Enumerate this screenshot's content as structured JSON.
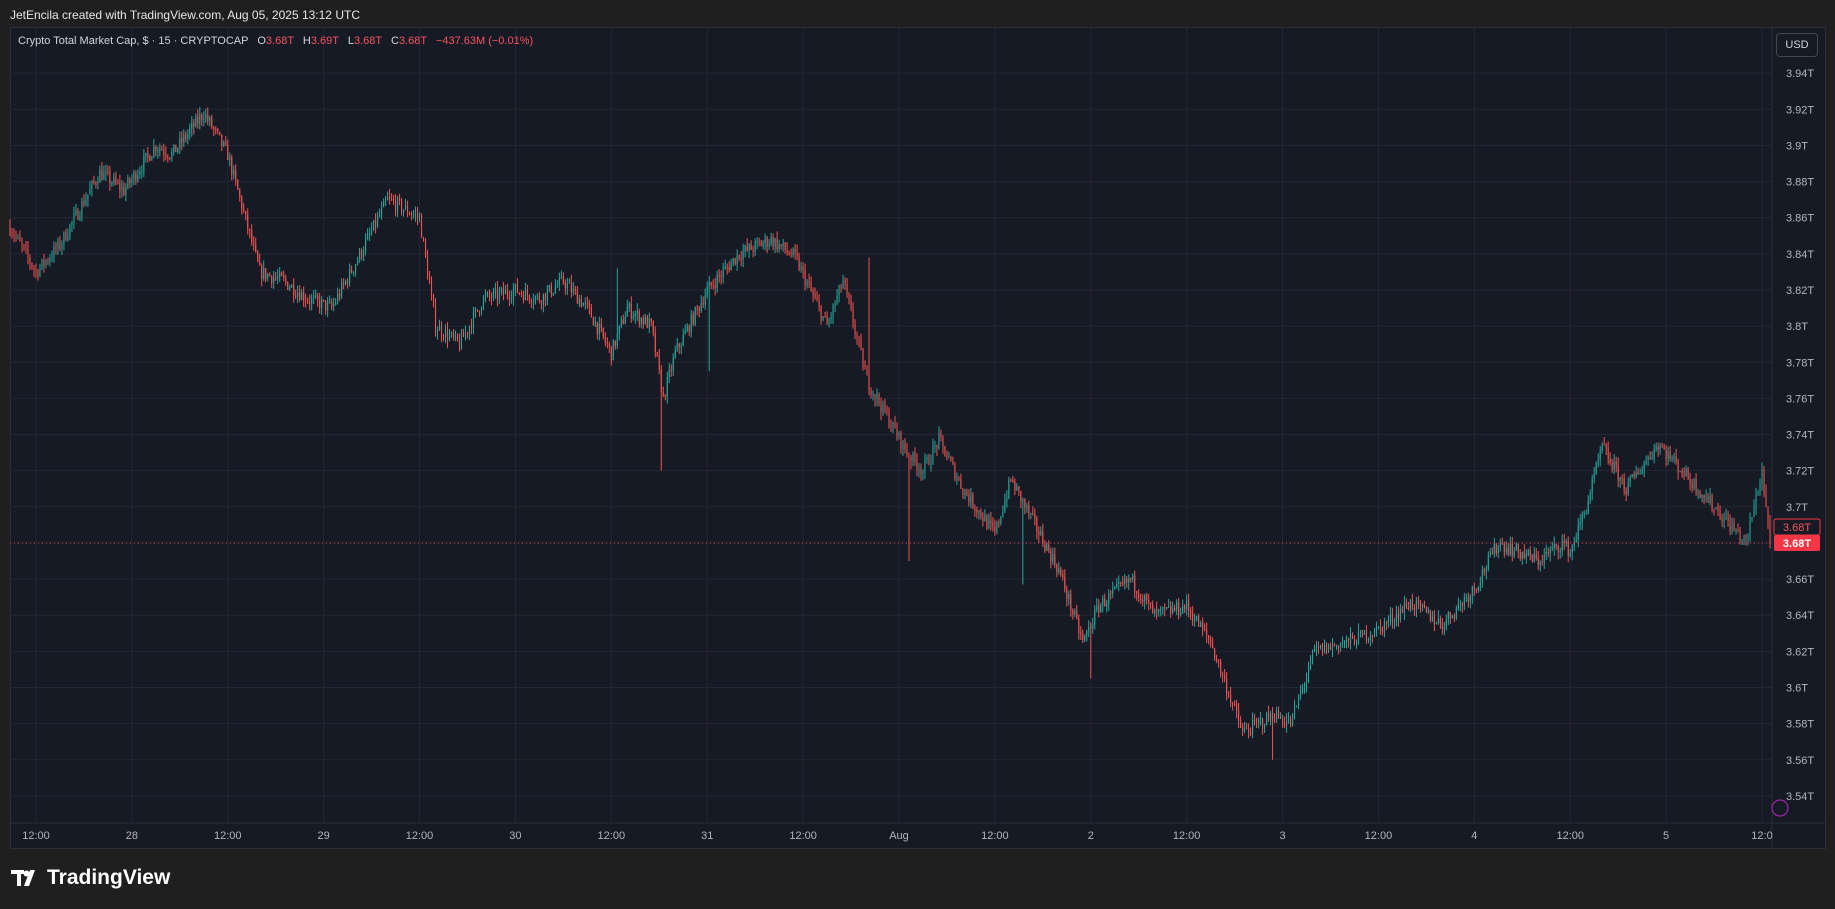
{
  "header": {
    "attribution": "JetEncila created with TradingView.com, Aug 05, 2025 13:12 UTC"
  },
  "legend": {
    "symbol": "Crypto Total Market Cap, $ · 15 · CRYPTOCAP",
    "o_label": "O",
    "o_value": "3.68T",
    "h_label": "H",
    "h_value": "3.69T",
    "l_label": "L",
    "l_value": "3.68T",
    "c_label": "C",
    "c_value": "3.68T",
    "change": "−437.63M (−0.01%)"
  },
  "currency_button": "USD",
  "last_price_label": "3.68T",
  "last_price_label_2": "3.68T",
  "brand": "TradingView",
  "colors": {
    "up": "#26a69a",
    "down": "#ef5350",
    "background": "#161a25",
    "grid": "#242733",
    "price_line": "#f23645"
  },
  "chart_data": {
    "type": "candlestick",
    "title": "Crypto Total Market Cap, $ · 15 · CRYPTOCAP",
    "ylabel": "USD",
    "y_unit": "T",
    "ylim": [
      3.525,
      3.965
    ],
    "y_ticks": [
      3.54,
      3.56,
      3.58,
      3.6,
      3.62,
      3.64,
      3.66,
      3.68,
      3.7,
      3.72,
      3.74,
      3.76,
      3.78,
      3.8,
      3.82,
      3.84,
      3.86,
      3.88,
      3.9,
      3.92,
      3.94
    ],
    "y_tick_labels": [
      "3.54T",
      "3.56T",
      "3.58T",
      "3.6T",
      "3.62T",
      "3.64T",
      "3.66T",
      "3.68T",
      "3.7T",
      "3.72T",
      "3.74T",
      "3.76T",
      "3.78T",
      "3.8T",
      "3.82T",
      "3.84T",
      "3.86T",
      "3.88T",
      "3.9T",
      "3.92T",
      "3.94T"
    ],
    "x_start": "Jul 27, 2025 08:45 UTC",
    "x_end": "Aug 05, 2025 13:00 UTC",
    "x_interval": "15m",
    "x_ticks": [
      "12:00",
      "28",
      "12:00",
      "29",
      "12:00",
      "30",
      "12:00",
      "31",
      "12:00",
      "Aug",
      "12:00",
      "2",
      "12:00",
      "3",
      "12:00",
      "4",
      "12:00",
      "5",
      "12:0"
    ],
    "grid": true,
    "last_close": 3.68,
    "path_points": [
      [
        "Jul 27 08:45",
        3.855
      ],
      [
        "Jul 27 12:00",
        3.83
      ],
      [
        "Jul 27 15:00",
        3.845
      ],
      [
        "Jul 27 20:00",
        3.885
      ],
      [
        "Jul 27 23:00",
        3.875
      ],
      [
        "Jul 28 03:00",
        3.9
      ],
      [
        "Jul 28 05:00",
        3.895
      ],
      [
        "Jul 28 09:00",
        3.918
      ],
      [
        "Jul 28 12:00",
        3.895
      ],
      [
        "Jul 28 16:00",
        3.83
      ],
      [
        "Jul 28 19:00",
        3.825
      ],
      [
        "Jul 28 22:00",
        3.815
      ],
      [
        "Jul 29 01:00",
        3.81
      ],
      [
        "Jul 29 04:00",
        3.835
      ],
      [
        "Jul 29 08:00",
        3.87
      ],
      [
        "Jul 29 12:00",
        3.86
      ],
      [
        "Jul 29 14:00",
        3.8
      ],
      [
        "Jul 29 17:00",
        3.79
      ],
      [
        "Jul 29 20:00",
        3.815
      ],
      [
        "Jul 30 00:00",
        3.82
      ],
      [
        "Jul 30 03:00",
        3.815
      ],
      [
        "Jul 30 06:00",
        3.825
      ],
      [
        "Jul 30 09:00",
        3.81
      ],
      [
        "Jul 30 12:00",
        3.785
      ],
      [
        "Jul 30 14:00",
        3.81
      ],
      [
        "Jul 30 17:00",
        3.8
      ],
      [
        "Jul 30 18:30",
        3.76
      ],
      [
        "Jul 30 20:00",
        3.785
      ],
      [
        "Jul 31 00:00",
        3.82
      ],
      [
        "Jul 31 04:00",
        3.84
      ],
      [
        "Jul 31 08:00",
        3.848
      ],
      [
        "Jul 31 11:00",
        3.838
      ],
      [
        "Jul 31 15:00",
        3.8
      ],
      [
        "Jul 31 17:00",
        3.825
      ],
      [
        "Jul 31 20:00",
        3.77
      ],
      [
        "Aug 01 01:00",
        3.73
      ],
      [
        "Aug 01 03:00",
        3.72
      ],
      [
        "Aug 01 05:00",
        3.737
      ],
      [
        "Aug 01 08:00",
        3.71
      ],
      [
        "Aug 01 12:00",
        3.685
      ],
      [
        "Aug 01 14:00",
        3.715
      ],
      [
        "Aug 01 17:00",
        3.69
      ],
      [
        "Aug 01 20:00",
        3.665
      ],
      [
        "Aug 01 23:00",
        3.625
      ],
      [
        "Aug 02 01:00",
        3.645
      ],
      [
        "Aug 02 05:00",
        3.66
      ],
      [
        "Aug 02 08:00",
        3.64
      ],
      [
        "Aug 02 12:00",
        3.645
      ],
      [
        "Aug 02 15:00",
        3.625
      ],
      [
        "Aug 02 19:00",
        3.575
      ],
      [
        "Aug 02 23:00",
        3.585
      ],
      [
        "Aug 03 01:00",
        3.58
      ],
      [
        "Aug 03 04:00",
        3.62
      ],
      [
        "Aug 03 08:00",
        3.625
      ],
      [
        "Aug 03 12:00",
        3.632
      ],
      [
        "Aug 03 16:00",
        3.647
      ],
      [
        "Aug 03 20:00",
        3.635
      ],
      [
        "Aug 04 00:00",
        3.655
      ],
      [
        "Aug 04 03:00",
        3.68
      ],
      [
        "Aug 04 08:00",
        3.67
      ],
      [
        "Aug 04 11:00",
        3.68
      ],
      [
        "Aug 04 12:00",
        3.675
      ],
      [
        "Aug 04 14:00",
        3.7
      ],
      [
        "Aug 04 16:00",
        3.733
      ],
      [
        "Aug 04 19:00",
        3.71
      ],
      [
        "Aug 04 23:00",
        3.735
      ],
      [
        "Aug 05 03:00",
        3.715
      ],
      [
        "Aug 05 07:00",
        3.695
      ],
      [
        "Aug 05 10:00",
        3.68
      ],
      [
        "Aug 05 12:00",
        3.72
      ],
      [
        "Aug 05 13:00",
        3.68
      ]
    ],
    "spikes": [
      {
        "time": "Jul 30 18:15",
        "low": 3.72
      },
      {
        "time": "Jul 31 00:15",
        "low": 3.775
      },
      {
        "time": "Aug 01 01:15",
        "low": 3.67
      },
      {
        "time": "Aug 01 15:30",
        "low": 3.657
      },
      {
        "time": "Aug 02 00:00",
        "low": 3.605
      },
      {
        "time": "Aug 02 22:45",
        "low": 3.56
      },
      {
        "time": "Jul 31 20:15",
        "high": 3.838
      },
      {
        "time": "Jul 30 12:45",
        "high": 3.832
      }
    ]
  }
}
